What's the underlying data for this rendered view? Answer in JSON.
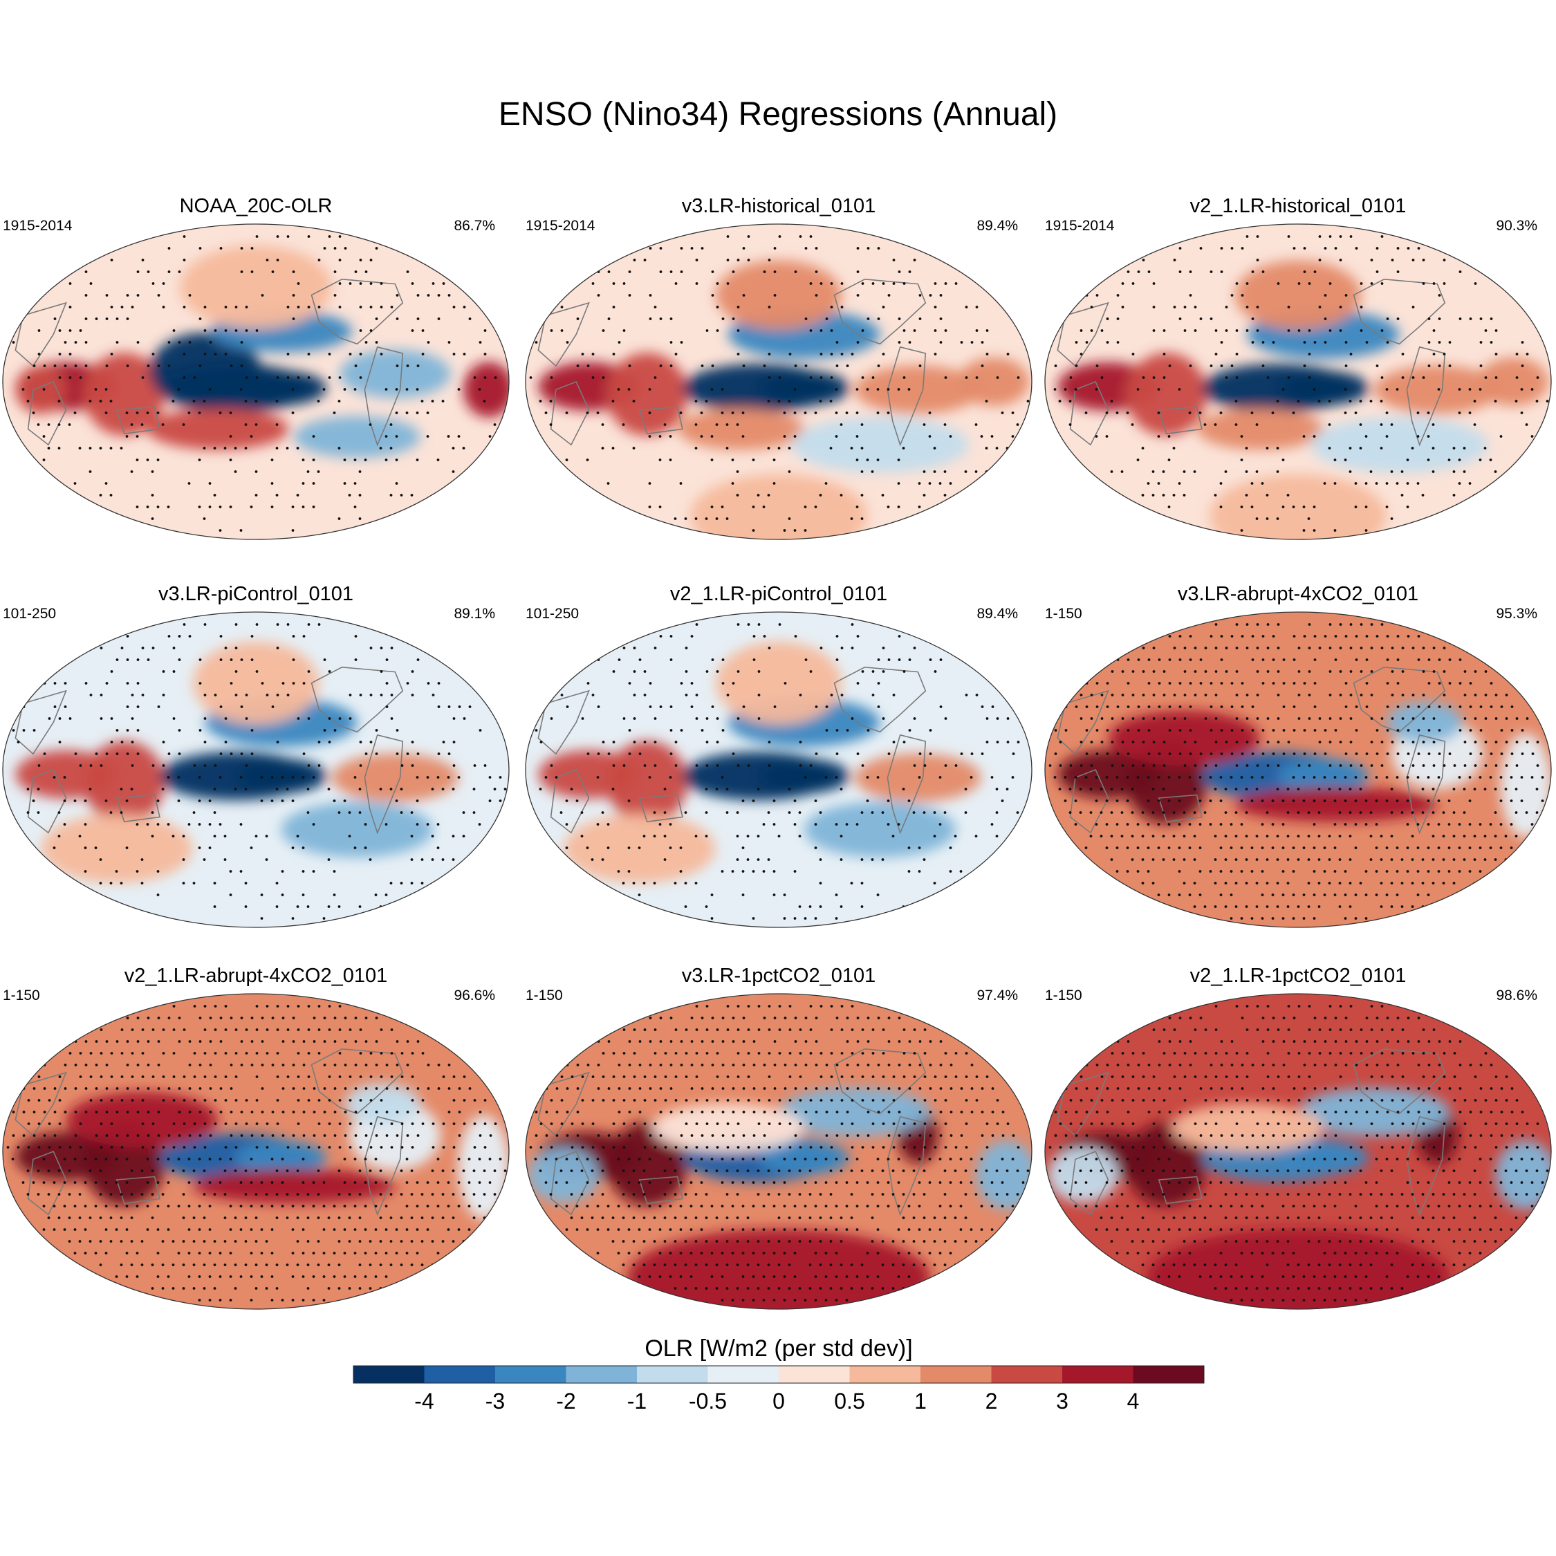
{
  "chart_data": {
    "type": "heatmap",
    "title": "ENSO (Nino34) Regressions (Annual)",
    "variable": "OLR",
    "panels": [
      {
        "title": "NOAA_20C-OLR",
        "period": "1915-2014",
        "pattern_correlation": "86.7%",
        "base": 0,
        "regime": "obs"
      },
      {
        "title": "v3.LR-historical_0101",
        "period": "1915-2014",
        "pattern_correlation": "89.4%",
        "base": 0,
        "regime": "hist"
      },
      {
        "title": "v2_1.LR-historical_0101",
        "period": "1915-2014",
        "pattern_correlation": "90.3%",
        "base": 0,
        "regime": "hist"
      },
      {
        "title": "v3.LR-piControl_0101",
        "period": "101-250",
        "pattern_correlation": "89.1%",
        "base": -0.3,
        "regime": "pi"
      },
      {
        "title": "v2_1.LR-piControl_0101",
        "period": "101-250",
        "pattern_correlation": "89.4%",
        "base": -0.3,
        "regime": "pi"
      },
      {
        "title": "v3.LR-abrupt-4xCO2_0101",
        "period": "1-150",
        "pattern_correlation": "95.3%",
        "base": 1.5,
        "regime": "abrupt"
      },
      {
        "title": "v2_1.LR-abrupt-4xCO2_0101",
        "period": "1-150",
        "pattern_correlation": "96.6%",
        "base": 1.7,
        "regime": "abrupt"
      },
      {
        "title": "v3.LR-1pctCO2_0101",
        "period": "1-150",
        "pattern_correlation": "97.4%",
        "base": 1.8,
        "regime": "pct"
      },
      {
        "title": "v2_1.LR-1pctCO2_0101",
        "period": "1-150",
        "pattern_correlation": "98.6%",
        "base": 2.0,
        "regime": "pct"
      }
    ],
    "colorbar": {
      "label": "OLR [W/m2 (per std dev)]",
      "levels": [
        -4,
        -3,
        -2,
        -1,
        -0.5,
        0,
        0.5,
        1,
        2,
        3,
        4
      ],
      "tick_labels": [
        "-4",
        "-3",
        "-2",
        "-1",
        "-0.5",
        "0",
        "0.5",
        "1",
        "2",
        "3",
        "4"
      ],
      "colors": [
        "#053061",
        "#1f5fa6",
        "#3a86c0",
        "#7fb4d8",
        "#c3dcec",
        "#e6eff5",
        "#fbe3d8",
        "#f6b99c",
        "#e48a69",
        "#c94a43",
        "#a5172b",
        "#6b0a20"
      ]
    }
  }
}
